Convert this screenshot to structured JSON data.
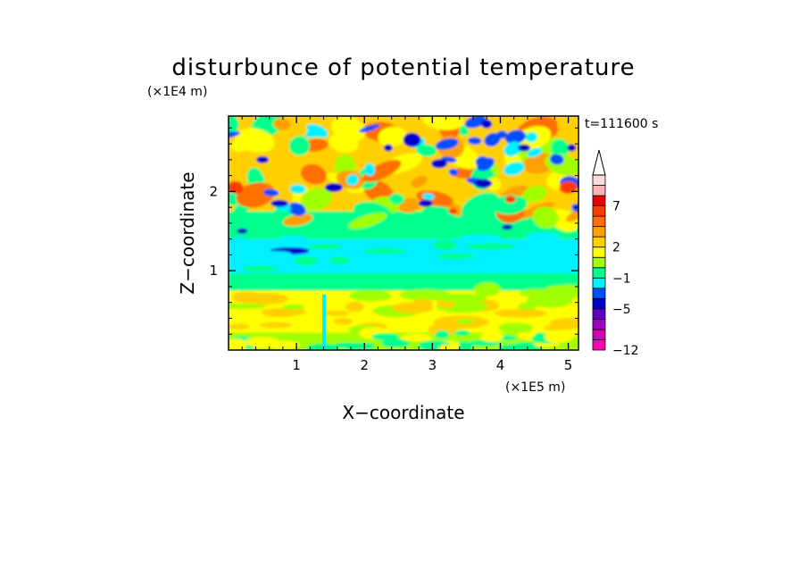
{
  "chart_data": {
    "type": "heatmap",
    "title": "disturbunce of potential temperature",
    "xlabel": "X−coordinate",
    "ylabel": "Z−coordinate",
    "x_unit": "(×1E5 m)",
    "y_unit": "(×1E4 m)",
    "time_label": "t=111600 s",
    "xlim": [
      0,
      5.15
    ],
    "ylim": [
      0,
      2.95
    ],
    "x_ticks": [
      1,
      2,
      3,
      4,
      5
    ],
    "x_tick_labels": [
      "1",
      "2",
      "3",
      "4",
      "5"
    ],
    "y_ticks": [
      1,
      2
    ],
    "y_tick_labels": [
      "1",
      "2"
    ],
    "colorbar": {
      "extend_max": true,
      "colors": [
        "#ff00b4",
        "#d400b4",
        "#a000c0",
        "#6000c0",
        "#0000c8",
        "#0050ff",
        "#00f0ff",
        "#00ff8c",
        "#a0ff00",
        "#ffff00",
        "#ffd000",
        "#ffa000",
        "#ff7000",
        "#ff3c00",
        "#e60000",
        "#ffb4b4",
        "#ffd8d8"
      ],
      "tick_labels": [
        "−12",
        "−5",
        "−1",
        "2",
        "7"
      ],
      "tick_level_positions": [
        0,
        4,
        7,
        10,
        14
      ]
    },
    "field_description_levels": {
      "band_ranges_z": [
        {
          "z": [
            0.0,
            0.25
          ],
          "level": "green/yellow mix"
        },
        {
          "z": [
            0.25,
            0.75
          ],
          "level": "yellow"
        },
        {
          "z": [
            0.75,
            0.95
          ],
          "level": "green"
        },
        {
          "z": [
            0.95,
            1.4
          ],
          "level": "cyan"
        },
        {
          "z": [
            1.4,
            2.95
          ],
          "level": "mixed yellow/orange/green with blue cells"
        }
      ]
    }
  }
}
